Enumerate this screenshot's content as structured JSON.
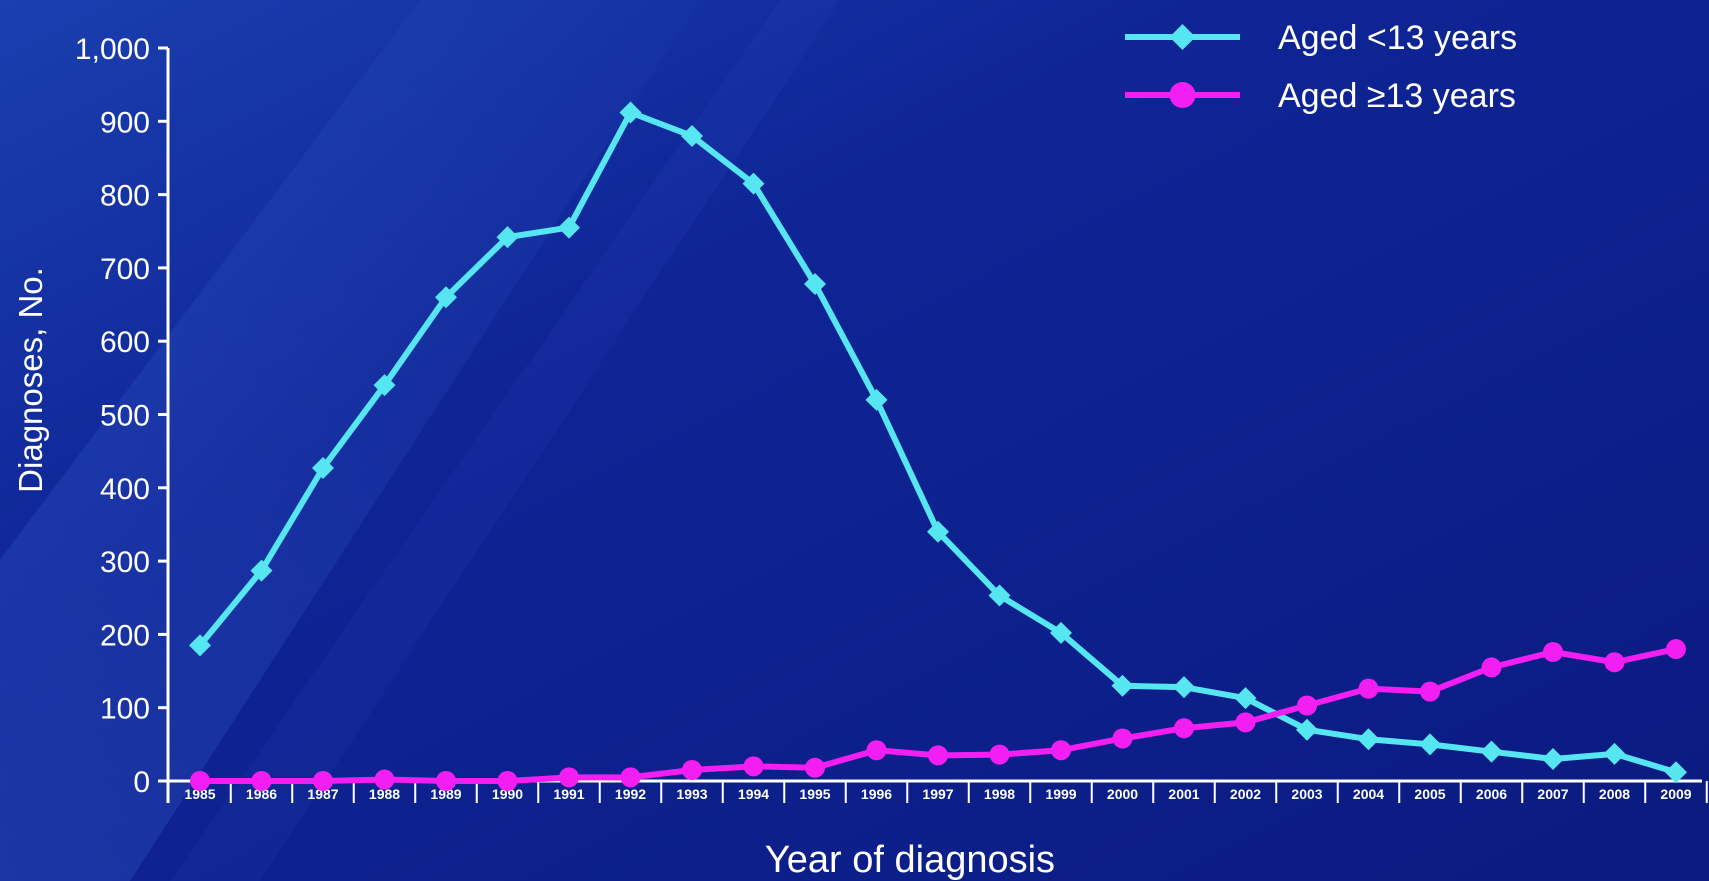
{
  "chart_data": {
    "type": "line",
    "title": "",
    "xlabel": "Year of diagnosis",
    "ylabel": "Diagnoses, No.",
    "ylim": [
      0,
      1000
    ],
    "y_ticks": [
      "0",
      "100",
      "200",
      "300",
      "400",
      "500",
      "600",
      "700",
      "800",
      "900",
      "1,000"
    ],
    "grid": false,
    "legend_position": "top-right",
    "x": [
      "1985",
      "1986",
      "1987",
      "1988",
      "1989",
      "1990",
      "1991",
      "1992",
      "1993",
      "1994",
      "1995",
      "1996",
      "1997",
      "1998",
      "1999",
      "2000",
      "2001",
      "2002",
      "2003",
      "2004",
      "2005",
      "2006",
      "2007",
      "2008",
      "2009"
    ],
    "series": [
      {
        "name": "Aged <13 years",
        "color": "#55e6f2",
        "marker": "diamond",
        "values": [
          185,
          287,
          427,
          540,
          660,
          742,
          755,
          912,
          880,
          815,
          678,
          520,
          340,
          253,
          202,
          130,
          128,
          113,
          70,
          57,
          50,
          40,
          30,
          37,
          12
        ]
      },
      {
        "name": "Aged ≥13 years",
        "color": "#f21ef2",
        "marker": "circle",
        "values": [
          0,
          0,
          0,
          2,
          0,
          0,
          5,
          5,
          15,
          20,
          18,
          42,
          35,
          36,
          42,
          58,
          72,
          80,
          103,
          126,
          122,
          155,
          176,
          162,
          180
        ]
      }
    ]
  }
}
